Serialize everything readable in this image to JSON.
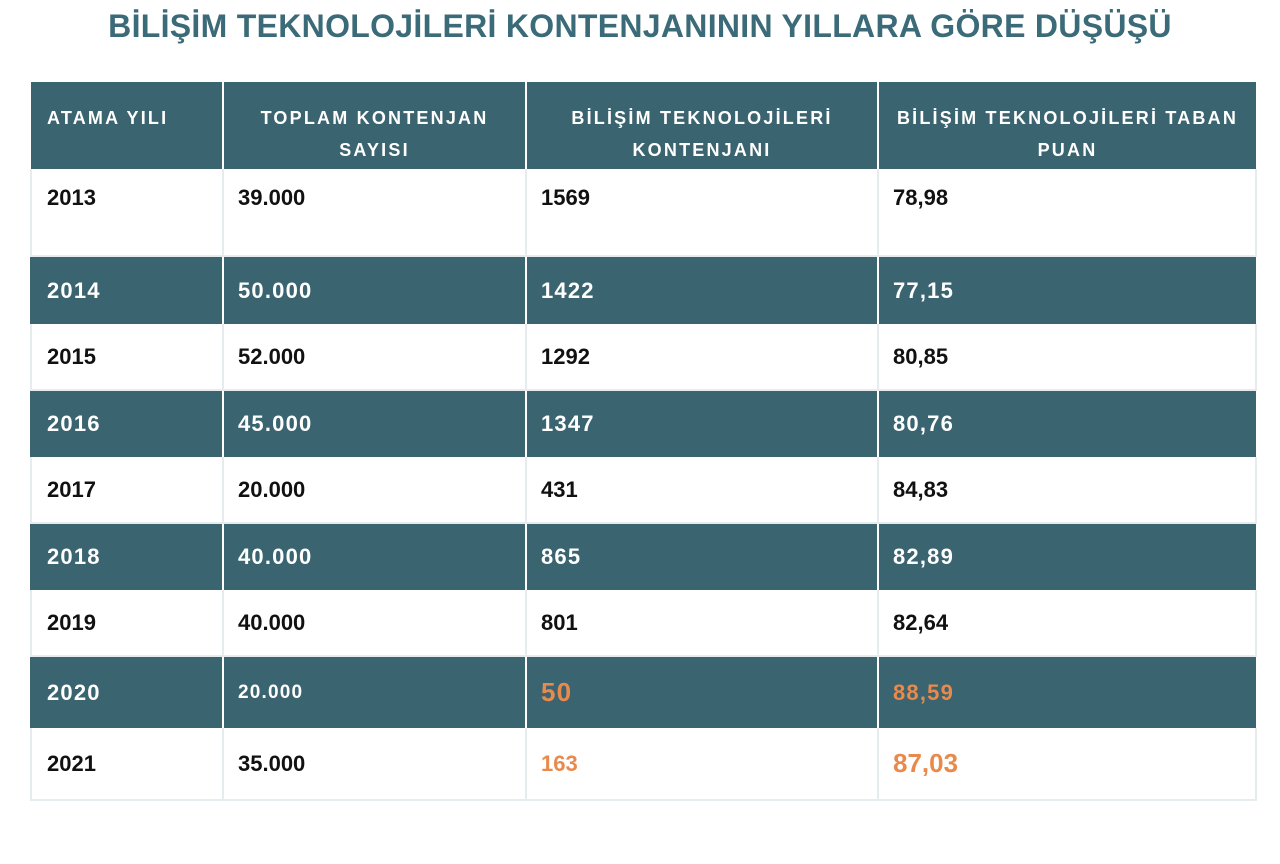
{
  "title": "BİLİŞİM TEKNOLOJİLERİ KONTENJANININ YILLARA GÖRE DÜŞÜŞÜ",
  "table": {
    "headers": [
      "ATAMA YILI",
      "TOPLAM KONTENJAN SAYISI",
      "BİLİŞİM TEKNOLOJİLERİ KONTENJANI",
      "BİLİŞİM TEKNOLOJİLERİ TABAN PUAN"
    ],
    "rows": [
      [
        "2013",
        "39.000",
        "1569",
        "78,98"
      ],
      [
        "2014",
        "50.000",
        "1422",
        "77,15"
      ],
      [
        "2015",
        "52.000",
        "1292",
        "80,85"
      ],
      [
        "2016",
        "45.000",
        "1347",
        "80,76"
      ],
      [
        "2017",
        "20.000",
        "431",
        "84,83"
      ],
      [
        "2018",
        "40.000",
        "865",
        "82,89"
      ],
      [
        "2019",
        "40.000",
        "801",
        "82,64"
      ],
      [
        "2020",
        "20.000",
        "50",
        "88,59"
      ],
      [
        "2021",
        "35.000",
        "163",
        "87,03"
      ]
    ]
  },
  "colors": {
    "title": "#3b6a78",
    "header_bg": "#3a6470",
    "band_bg": "#3a6470",
    "highlight": "#e98a4c",
    "text": "#111111"
  }
}
